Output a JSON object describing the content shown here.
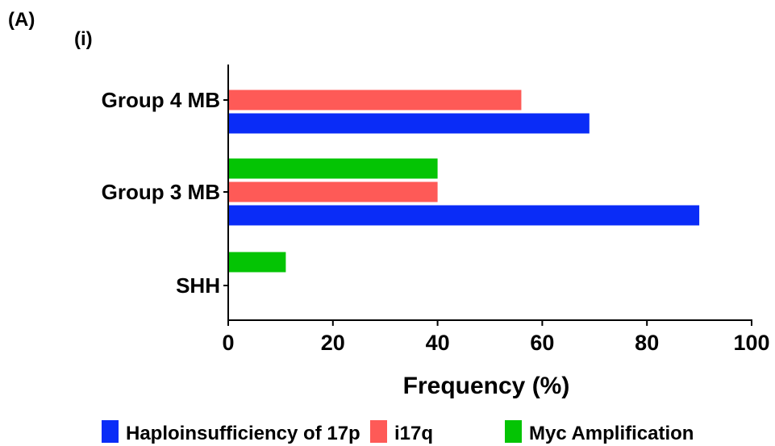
{
  "panel_label": "(A)",
  "subpanel_label": "(i)",
  "chart_data": {
    "type": "bar",
    "orientation": "horizontal",
    "categories": [
      "Group 4 MB",
      "Group 3 MB",
      "SHH"
    ],
    "series": [
      {
        "name": "Haploinsufficiency of 17p",
        "color": "#0a2cf7",
        "values": [
          69,
          90,
          null
        ]
      },
      {
        "name": "i17q",
        "color": "#fe5a57",
        "values": [
          56,
          40,
          null
        ]
      },
      {
        "name": "Myc Amplification",
        "color": "#04c404",
        "values": [
          null,
          40,
          11
        ]
      }
    ],
    "xlabel": "Frequency (%)",
    "xlim": [
      0,
      100
    ],
    "xticks": [
      0,
      20,
      40,
      60,
      80,
      100
    ],
    "legend_position": "bottom",
    "grid": false
  }
}
